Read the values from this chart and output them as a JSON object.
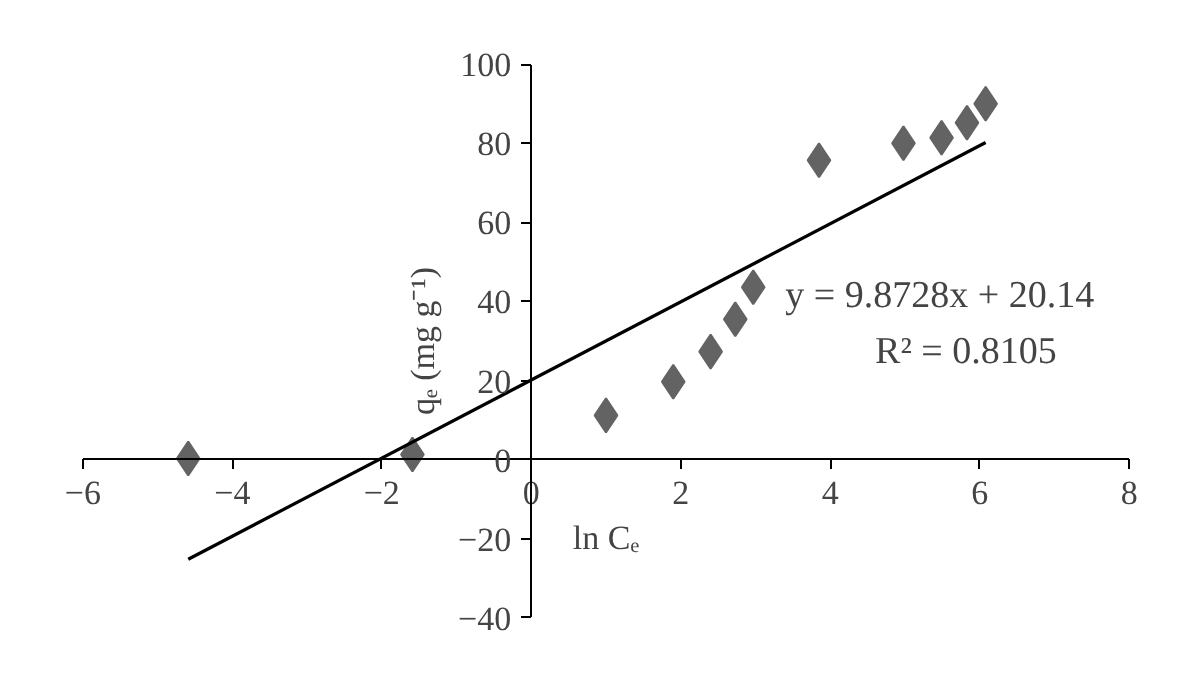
{
  "chart_data": {
    "type": "scatter",
    "xlabel": "ln Cₑ",
    "ylabel": "qₑ (mg g⁻¹)",
    "xlim": [
      -6,
      8
    ],
    "xticks": [
      -6,
      -4,
      -2,
      0,
      2,
      4,
      6,
      8
    ],
    "ylim": [
      -40,
      100
    ],
    "yticks": [
      -40,
      -20,
      0,
      20,
      40,
      60,
      80,
      100
    ],
    "grid": false,
    "marker": "diamond",
    "annotations": [
      "y = 9.8728x + 20.14",
      "R² = 0.8105"
    ],
    "series": [
      {
        "color": "#636363",
        "x": [
          -4.59,
          -1.59,
          1.0,
          1.9,
          2.4,
          2.73,
          2.97,
          3.85,
          4.98,
          5.49,
          5.83,
          6.08
        ],
        "values": [
          0.3,
          1.3,
          11.2,
          19.7,
          27.3,
          35.5,
          43.6,
          75.7,
          80,
          81.4,
          85.2,
          90
        ]
      },
      {
        "type": "line",
        "color": "#000000",
        "marker": "none",
        "x": [
          -4.59,
          6.08
        ],
        "values": [
          -25.2,
          80.2
        ]
      }
    ]
  }
}
